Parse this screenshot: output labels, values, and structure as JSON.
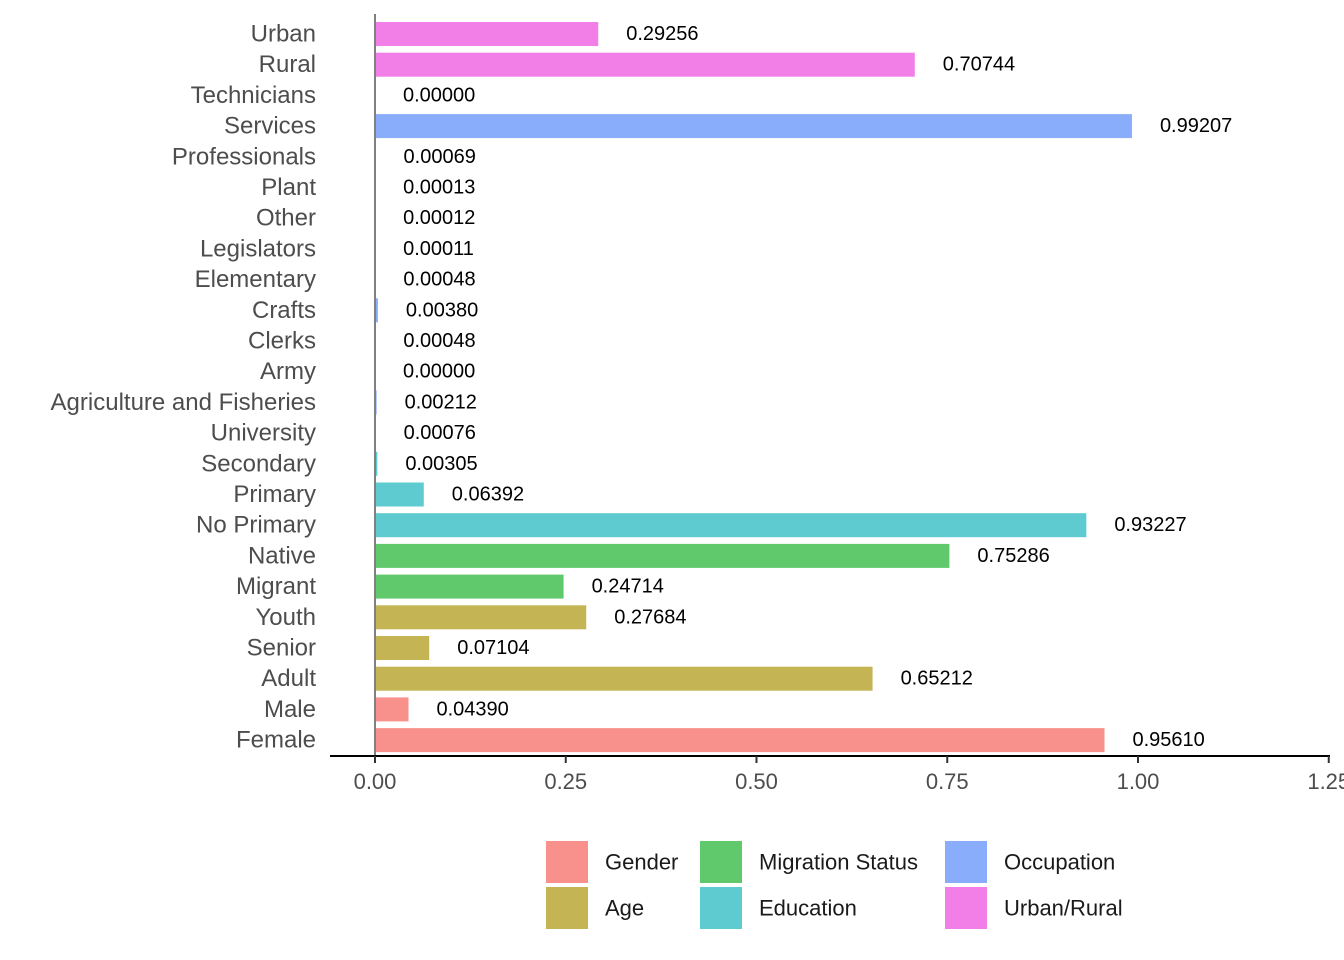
{
  "chart_data": {
    "type": "bar",
    "orientation": "horizontal",
    "xlim": [
      0,
      1.25
    ],
    "xticks": [
      "0.00",
      "0.25",
      "0.50",
      "0.75",
      "1.00",
      "1.25"
    ],
    "xtick_values": [
      0,
      0.25,
      0.5,
      0.75,
      1.0,
      1.25
    ],
    "grid": false,
    "legend_position": "bottom",
    "groups": [
      {
        "name": "Gender",
        "color": "#F8918B"
      },
      {
        "name": "Age",
        "color": "#C4B453"
      },
      {
        "name": "Migration Status",
        "color": "#5FC96C"
      },
      {
        "name": "Education",
        "color": "#5DCBCF"
      },
      {
        "name": "Occupation",
        "color": "#8AADFB"
      },
      {
        "name": "Urban/Rural",
        "color": "#F27EE7"
      }
    ],
    "bars": [
      {
        "category": "Urban",
        "group": "Urban/Rural",
        "value": 0.29256,
        "label": "0.29256"
      },
      {
        "category": "Rural",
        "group": "Urban/Rural",
        "value": 0.70744,
        "label": "0.70744"
      },
      {
        "category": "Technicians",
        "group": "Occupation",
        "value": 0.0,
        "label": "0.00000"
      },
      {
        "category": "Services",
        "group": "Occupation",
        "value": 0.99207,
        "label": "0.99207"
      },
      {
        "category": "Professionals",
        "group": "Occupation",
        "value": 0.00069,
        "label": "0.00069"
      },
      {
        "category": "Plant",
        "group": "Occupation",
        "value": 0.00013,
        "label": "0.00013"
      },
      {
        "category": "Other",
        "group": "Occupation",
        "value": 0.00012,
        "label": "0.00012"
      },
      {
        "category": "Legislators",
        "group": "Occupation",
        "value": 0.00011,
        "label": "0.00011"
      },
      {
        "category": "Elementary",
        "group": "Occupation",
        "value": 0.00048,
        "label": "0.00048"
      },
      {
        "category": "Crafts",
        "group": "Occupation",
        "value": 0.0038,
        "label": "0.00380"
      },
      {
        "category": "Clerks",
        "group": "Occupation",
        "value": 0.00048,
        "label": "0.00048"
      },
      {
        "category": "Army",
        "group": "Occupation",
        "value": 0.0,
        "label": "0.00000"
      },
      {
        "category": "Agriculture and Fisheries",
        "group": "Occupation",
        "value": 0.00212,
        "label": "0.00212"
      },
      {
        "category": "University",
        "group": "Education",
        "value": 0.00076,
        "label": "0.00076"
      },
      {
        "category": "Secondary",
        "group": "Education",
        "value": 0.00305,
        "label": "0.00305"
      },
      {
        "category": "Primary",
        "group": "Education",
        "value": 0.06392,
        "label": "0.06392"
      },
      {
        "category": "No Primary",
        "group": "Education",
        "value": 0.93227,
        "label": "0.93227"
      },
      {
        "category": "Native",
        "group": "Migration Status",
        "value": 0.75286,
        "label": "0.75286"
      },
      {
        "category": "Migrant",
        "group": "Migration Status",
        "value": 0.24714,
        "label": "0.24714"
      },
      {
        "category": "Youth",
        "group": "Age",
        "value": 0.27684,
        "label": "0.27684"
      },
      {
        "category": "Senior",
        "group": "Age",
        "value": 0.07104,
        "label": "0.07104"
      },
      {
        "category": "Adult",
        "group": "Age",
        "value": 0.65212,
        "label": "0.65212"
      },
      {
        "category": "Male",
        "group": "Gender",
        "value": 0.0439,
        "label": "0.04390"
      },
      {
        "category": "Female",
        "group": "Gender",
        "value": 0.9561,
        "label": "0.95610"
      }
    ]
  }
}
